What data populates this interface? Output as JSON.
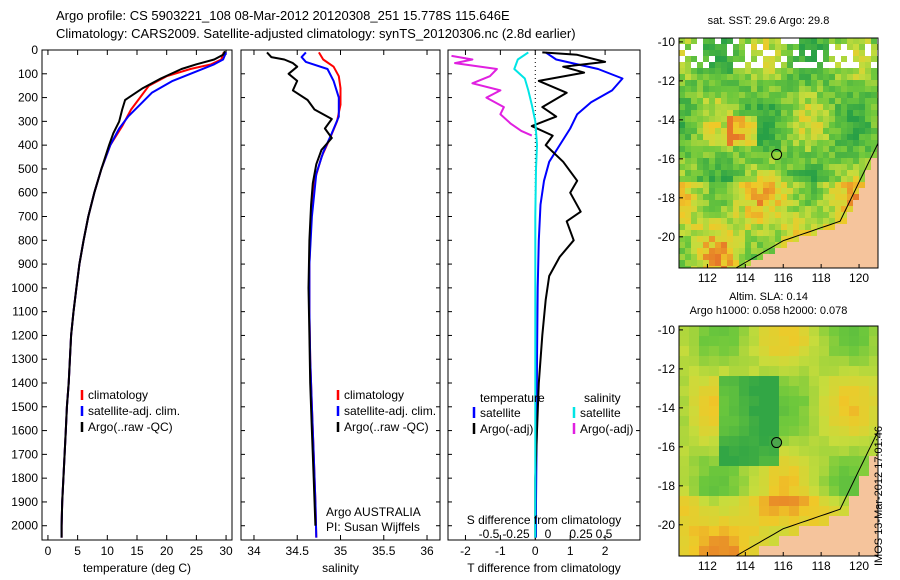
{
  "header": {
    "title_line1": "Argo profile: CS 5903221_108 08-Mar-2012 20120308_251 15.778S 115.646E",
    "title_line2": "Climatology: CARS2009. Satellite-adjusted climatology: synTS_20120306.nc (2.8d earlier)"
  },
  "stamp": "IMOS 13-Mar-2012 17:01:46",
  "colors": {
    "climatology": "#ff0000",
    "satellite_adj": "#0000ff",
    "argo": "#000000",
    "salinity_satellite": "#00e5e5",
    "salinity_argo": "#e020e0",
    "land": "#f5c49c"
  },
  "chart_data": [
    {
      "type": "line",
      "ylabel": "",
      "xlabel": "temperature (deg C)",
      "xlim": [
        -1,
        31
      ],
      "ylim": [
        2060,
        0
      ],
      "xticks": [
        0,
        5,
        10,
        15,
        20,
        25,
        30
      ],
      "yticks": [
        0,
        100,
        200,
        300,
        400,
        500,
        600,
        700,
        800,
        900,
        1000,
        1100,
        1200,
        1300,
        1400,
        1500,
        1600,
        1700,
        1800,
        1900,
        2000
      ],
      "legend": {
        "placement": "lower-center",
        "entries": [
          "climatology",
          "satellite-adj. clim.",
          "Argo(..raw -QC)"
        ]
      },
      "series": [
        {
          "name": "climatology",
          "color": "#ff0000",
          "points": [
            [
              29.6,
              10
            ],
            [
              29.2,
              40
            ],
            [
              27.5,
              60
            ],
            [
              24,
              80
            ],
            [
              20,
              110
            ],
            [
              17,
              150
            ],
            [
              15.5,
              200
            ],
            [
              14,
              250
            ],
            [
              12.5,
              320
            ],
            [
              10.5,
              400
            ],
            [
              9,
              500
            ],
            [
              7.8,
              600
            ],
            [
              6.8,
              700
            ],
            [
              6,
              800
            ],
            [
              5.3,
              900
            ],
            [
              4.8,
              1000
            ],
            [
              4.3,
              1100
            ],
            [
              3.9,
              1200
            ],
            [
              3.7,
              1300
            ],
            [
              3.5,
              1400
            ],
            [
              3.2,
              1500
            ],
            [
              3.0,
              1600
            ],
            [
              2.8,
              1700
            ],
            [
              2.6,
              1800
            ],
            [
              2.4,
              1900
            ],
            [
              2.3,
              2000
            ],
            [
              2.3,
              2050
            ]
          ]
        },
        {
          "name": "satellite-adj. clim.",
          "color": "#0000ff",
          "points": [
            [
              30.0,
              10
            ],
            [
              29.5,
              40
            ],
            [
              28,
              60
            ],
            [
              25,
              90
            ],
            [
              21,
              130
            ],
            [
              17.5,
              180
            ],
            [
              15.5,
              230
            ],
            [
              13.5,
              280
            ],
            [
              12,
              330
            ],
            [
              10.5,
              400
            ],
            [
              9,
              500
            ],
            [
              7.8,
              600
            ],
            [
              6.8,
              700
            ],
            [
              6,
              800
            ],
            [
              5.3,
              900
            ],
            [
              4.8,
              1000
            ],
            [
              4.3,
              1100
            ],
            [
              3.9,
              1200
            ],
            [
              3.7,
              1300
            ],
            [
              3.5,
              1400
            ],
            [
              3.2,
              1500
            ],
            [
              3.0,
              1600
            ],
            [
              2.8,
              1700
            ],
            [
              2.6,
              1800
            ],
            [
              2.4,
              1900
            ],
            [
              2.3,
              2000
            ],
            [
              2.3,
              2050
            ]
          ]
        },
        {
          "name": "Argo(..raw -QC)",
          "color": "#000000",
          "points": [
            [
              29.8,
              5
            ],
            [
              29.5,
              20
            ],
            [
              28,
              40
            ],
            [
              25,
              60
            ],
            [
              22.5,
              80
            ],
            [
              19,
              120
            ],
            [
              16,
              160
            ],
            [
              13,
              210
            ],
            [
              12.5,
              250
            ],
            [
              12,
              300
            ],
            [
              11,
              350
            ],
            [
              10.3,
              400
            ],
            [
              9,
              500
            ],
            [
              7.8,
              600
            ],
            [
              6.8,
              700
            ],
            [
              6,
              800
            ],
            [
              5.3,
              900
            ],
            [
              4.8,
              1000
            ],
            [
              4.3,
              1100
            ],
            [
              3.9,
              1200
            ],
            [
              3.7,
              1300
            ],
            [
              3.5,
              1400
            ],
            [
              3.2,
              1500
            ],
            [
              3.0,
              1600
            ],
            [
              2.8,
              1700
            ],
            [
              2.6,
              1800
            ],
            [
              2.4,
              1900
            ],
            [
              2.3,
              2000
            ],
            [
              2.3,
              2050
            ]
          ]
        }
      ]
    },
    {
      "type": "line",
      "xlabel": "salinity",
      "xlim": [
        33.85,
        36.15
      ],
      "ylim": [
        2060,
        0
      ],
      "xticks": [
        34,
        34.5,
        35,
        35.5,
        36
      ],
      "legend": {
        "placement": "lower-center",
        "entries": [
          "climatology",
          "satellite-adj. clim.",
          "Argo(..raw -QC)"
        ]
      },
      "annotation_lines": [
        "Argo AUSTRALIA",
        "PI: Susan Wijffels"
      ],
      "series": [
        {
          "name": "climatology",
          "color": "#ff0000",
          "points": [
            [
              34.75,
              10
            ],
            [
              34.8,
              40
            ],
            [
              34.92,
              70
            ],
            [
              34.98,
              110
            ],
            [
              35.0,
              160
            ],
            [
              35.0,
              230
            ],
            [
              34.96,
              300
            ],
            [
              34.88,
              370
            ],
            [
              34.78,
              450
            ],
            [
              34.7,
              550
            ],
            [
              34.66,
              700
            ],
            [
              34.64,
              900
            ],
            [
              34.64,
              1100
            ],
            [
              34.65,
              1300
            ],
            [
              34.67,
              1500
            ],
            [
              34.69,
              1700
            ],
            [
              34.71,
              1900
            ],
            [
              34.72,
              2050
            ]
          ]
        },
        {
          "name": "satellite-adj. clim.",
          "color": "#0000ff",
          "points": [
            [
              34.6,
              10
            ],
            [
              34.55,
              30
            ],
            [
              34.6,
              50
            ],
            [
              34.85,
              80
            ],
            [
              34.92,
              130
            ],
            [
              34.98,
              200
            ],
            [
              34.98,
              280
            ],
            [
              34.9,
              350
            ],
            [
              34.8,
              430
            ],
            [
              34.72,
              520
            ],
            [
              34.67,
              700
            ],
            [
              34.64,
              900
            ],
            [
              34.64,
              1100
            ],
            [
              34.65,
              1300
            ],
            [
              34.67,
              1500
            ],
            [
              34.69,
              1700
            ],
            [
              34.71,
              1900
            ],
            [
              34.72,
              2050
            ]
          ]
        },
        {
          "name": "Argo(..raw -QC)",
          "color": "#000000",
          "points": [
            [
              34.15,
              10
            ],
            [
              34.2,
              30
            ],
            [
              34.35,
              40
            ],
            [
              34.45,
              55
            ],
            [
              34.5,
              70
            ],
            [
              34.4,
              100
            ],
            [
              34.5,
              130
            ],
            [
              34.45,
              170
            ],
            [
              34.62,
              210
            ],
            [
              34.7,
              250
            ],
            [
              34.9,
              290
            ],
            [
              34.82,
              330
            ],
            [
              34.9,
              370
            ],
            [
              34.78,
              420
            ],
            [
              34.72,
              480
            ],
            [
              34.68,
              560
            ],
            [
              34.66,
              650
            ],
            [
              34.64,
              800
            ],
            [
              34.63,
              1000
            ],
            [
              34.64,
              1200
            ],
            [
              34.65,
              1400
            ],
            [
              34.67,
              1600
            ],
            [
              34.69,
              1800
            ],
            [
              34.71,
              2000
            ]
          ]
        }
      ]
    },
    {
      "type": "line",
      "xlabel": "T difference from climatology",
      "top_xlabel": "S difference from climatology",
      "xlim": [
        -2.5,
        3.0
      ],
      "ylim": [
        2060,
        0
      ],
      "xticks": [
        -2,
        -1,
        0,
        1,
        2
      ],
      "top_xticks": [
        "-0.5",
        "-0.25",
        "0",
        "0.25",
        "0.5"
      ],
      "legend": {
        "placement": "lower-center",
        "temperature_heading": "temperature",
        "salinity_heading": "salinity",
        "entries": [
          "satellite",
          "Argo(-adj)",
          "satellite",
          "Argo(-adj)"
        ]
      },
      "series": [
        {
          "name": "satellite",
          "color": "#0000ff",
          "points": [
            [
              0.3,
              10
            ],
            [
              0.6,
              40
            ],
            [
              1.8,
              80
            ],
            [
              2.5,
              120
            ],
            [
              2.2,
              170
            ],
            [
              1.6,
              220
            ],
            [
              1.2,
              270
            ],
            [
              1.0,
              330
            ],
            [
              0.7,
              400
            ],
            [
              0.4,
              470
            ],
            [
              0.25,
              550
            ],
            [
              0.15,
              650
            ],
            [
              0.1,
              800
            ],
            [
              0.07,
              1000
            ],
            [
              0.05,
              1300
            ],
            [
              0.04,
              1600
            ],
            [
              0.02,
              1900
            ],
            [
              0.02,
              2050
            ]
          ]
        },
        {
          "name": "Argo(-adj)",
          "color": "#000000",
          "points": [
            [
              0.2,
              10
            ],
            [
              1.2,
              20
            ],
            [
              2.0,
              50
            ],
            [
              0.8,
              70
            ],
            [
              1.4,
              95
            ],
            [
              0.1,
              130
            ],
            [
              0.9,
              180
            ],
            [
              0.2,
              240
            ],
            [
              0.6,
              280
            ],
            [
              -0.1,
              320
            ],
            [
              0.5,
              360
            ],
            [
              0.3,
              400
            ],
            [
              0.8,
              470
            ],
            [
              1.2,
              550
            ],
            [
              1.0,
              600
            ],
            [
              1.3,
              680
            ],
            [
              0.9,
              720
            ],
            [
              1.1,
              800
            ],
            [
              0.7,
              870
            ],
            [
              0.4,
              950
            ],
            [
              0.3,
              1050
            ],
            [
              0.2,
              1200
            ],
            [
              0.1,
              1400
            ],
            [
              0.05,
              1600
            ],
            [
              0.0,
              1800
            ],
            [
              0.0,
              2050
            ]
          ]
        },
        {
          "name": "salinity satellite",
          "color": "#00e5e5",
          "points": [
            [
              -0.2,
              10
            ],
            [
              -0.5,
              40
            ],
            [
              -0.6,
              80
            ],
            [
              -0.3,
              120
            ],
            [
              -0.2,
              170
            ],
            [
              -0.1,
              230
            ],
            [
              0.0,
              300
            ],
            [
              0.05,
              400
            ],
            [
              0.02,
              500
            ],
            [
              0.0,
              700
            ],
            [
              0.0,
              1000
            ],
            [
              0.0,
              1500
            ],
            [
              0.0,
              2050
            ]
          ]
        },
        {
          "name": "salinity Argo(-adj)",
          "color": "#e020e0",
          "points": [
            [
              -2.4,
              25
            ],
            [
              -1.8,
              40
            ],
            [
              -2.3,
              55
            ],
            [
              -1.1,
              80
            ],
            [
              -1.3,
              110
            ],
            [
              -1.8,
              140
            ],
            [
              -1.0,
              170
            ],
            [
              -1.4,
              200
            ],
            [
              -0.9,
              240
            ],
            [
              -1.0,
              270
            ],
            [
              -0.7,
              310
            ],
            [
              -0.4,
              340
            ],
            [
              -0.1,
              360
            ]
          ]
        }
      ]
    },
    {
      "type": "heatmap",
      "title": "sat. SST: 29.6  Argo: 29.8",
      "xticks": [
        112,
        114,
        116,
        118,
        120
      ],
      "yticks": [
        -10,
        -12,
        -14,
        -16,
        -18,
        -20
      ],
      "xlim": [
        110.5,
        121
      ],
      "ylim": [
        -21.6,
        -9.8
      ],
      "profile_marker": [
        115.65,
        -15.78
      ]
    },
    {
      "type": "heatmap",
      "title_lines": [
        "Altim. SLA: 0.14",
        "Argo h1000: 0.058 h2000: 0.078"
      ],
      "xticks": [
        112,
        114,
        116,
        118,
        120
      ],
      "yticks": [
        -10,
        -12,
        -14,
        -16,
        -18,
        -20
      ],
      "xlim": [
        110.5,
        121
      ],
      "ylim": [
        -21.6,
        -9.8
      ],
      "profile_marker": [
        115.65,
        -15.78
      ]
    }
  ]
}
